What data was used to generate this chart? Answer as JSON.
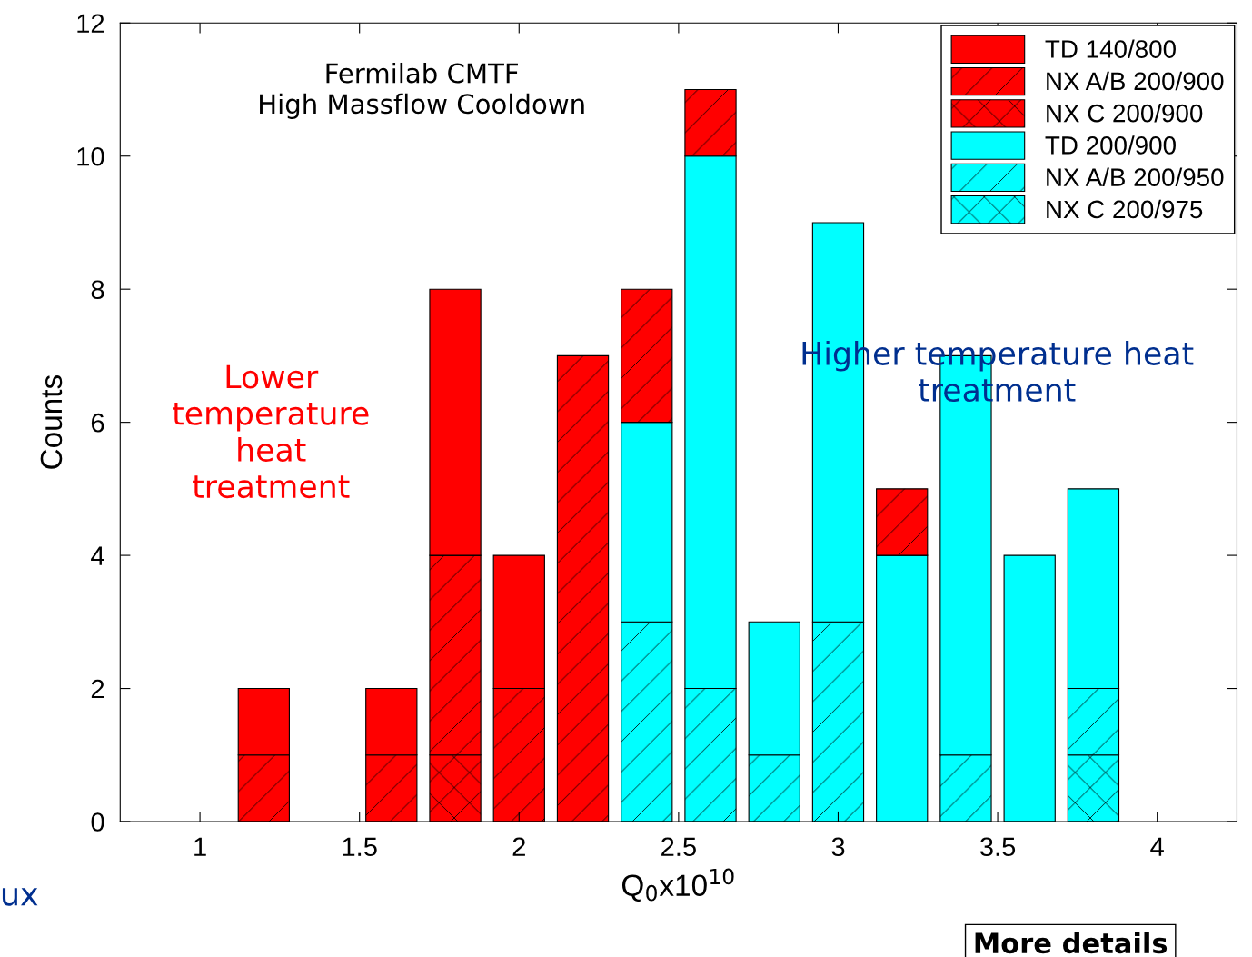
{
  "chart_data": {
    "type": "bar",
    "stacked": true,
    "x": [
      1.2,
      1.6,
      1.8,
      2.0,
      2.2,
      2.4,
      2.6,
      2.8,
      3.0,
      3.2,
      3.4,
      3.6,
      3.8
    ],
    "series": [
      {
        "name": "NX C 200/975",
        "color": "#00ffff",
        "values": [
          null,
          null,
          null,
          null,
          null,
          null,
          null,
          null,
          null,
          null,
          null,
          null,
          1
        ]
      },
      {
        "name": "NX A/B 200/950",
        "color": "#00ffff",
        "values": [
          null,
          null,
          null,
          null,
          null,
          3,
          2,
          1,
          3,
          null,
          1,
          null,
          1
        ]
      },
      {
        "name": "TD 200/900",
        "color": "#00ffff",
        "values": [
          null,
          null,
          null,
          null,
          null,
          3,
          8,
          2,
          6,
          4,
          6,
          4,
          3
        ]
      },
      {
        "name": "NX C 200/900",
        "color": "#ff0000",
        "values": [
          null,
          null,
          1,
          null,
          null,
          null,
          null,
          null,
          null,
          null,
          null,
          null,
          null
        ]
      },
      {
        "name": "NX A/B 200/900",
        "color": "#ff0000",
        "values": [
          1,
          1,
          3,
          2,
          7,
          2,
          1,
          null,
          null,
          1,
          null,
          null,
          null
        ]
      },
      {
        "name": "TD 140/800",
        "color": "#ff0000",
        "values": [
          1,
          1,
          4,
          2,
          null,
          null,
          null,
          null,
          null,
          null,
          null,
          null,
          null
        ]
      }
    ],
    "xlim": [
      0.75,
      4.25
    ],
    "xticks": [
      1,
      1.5,
      2,
      2.5,
      3,
      3.5,
      4
    ],
    "ylim": [
      0,
      12
    ],
    "yticks": [
      0,
      2,
      4,
      6,
      8,
      10,
      12
    ],
    "xlabel": "Q$_{0}$x10$^{10}$",
    "ylabel": "Counts",
    "legend": "top right",
    "grid": false,
    "annotations": [
      "Fermilab CMTF\nHigh Massflow Cooldown",
      "Lower\ntemperature\nheat\ntreatment",
      "Higher temperature heat\ntreatment",
      "ux",
      "More details"
    ]
  }
}
